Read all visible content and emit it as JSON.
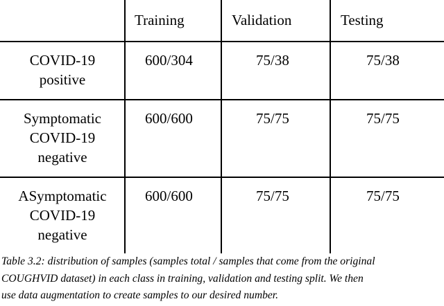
{
  "table": {
    "headers": [
      "",
      "Training",
      "Validation",
      "Testing"
    ],
    "rows": [
      {
        "label_lines": [
          "COVID-19",
          "positive"
        ],
        "training": "600/304",
        "validation": "75/38",
        "testing": "75/38"
      },
      {
        "label_lines": [
          "Symptomatic",
          "COVID-19",
          "negative"
        ],
        "training": "600/600",
        "validation": "75/75",
        "testing": "75/75"
      },
      {
        "label_lines": [
          "ASymptomatic",
          "COVID-19",
          "negative"
        ],
        "training": "600/600",
        "validation": "75/75",
        "testing": "75/75"
      }
    ]
  },
  "caption": {
    "lines": [
      "Table 3.2: distribution of samples (samples total / samples that come from the original",
      "COUGHVID dataset) in each class in training, validation and testing split. We then",
      "use data augmentation to create samples to our desired number."
    ]
  }
}
